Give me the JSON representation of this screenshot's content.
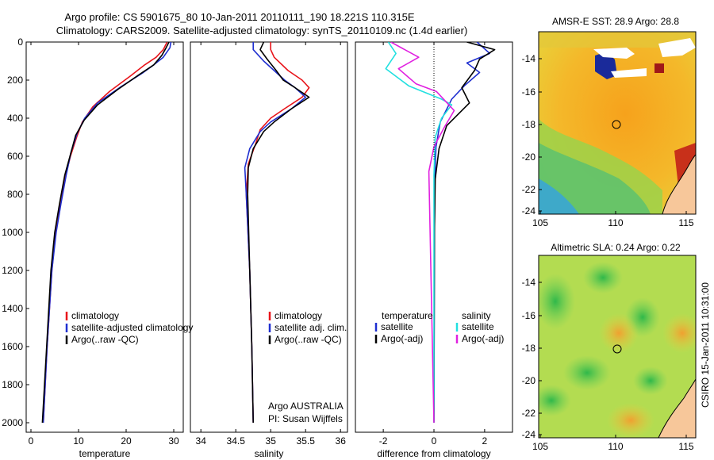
{
  "title_line1": "Argo profile: CS 5901675_80 10-Jan-2011 20110111_190 18.221S 110.315E",
  "title_line2": "Climatology: CARS2009. Satellite-adjusted climatology: synTS_20110109.nc (1.4d earlier)",
  "side_credit": "CSIRO 15-Jan-2011 10:31:00",
  "colors": {
    "red": "#e8141a",
    "blue": "#1f2fd0",
    "black": "#000000",
    "cyan": "#22e0e0",
    "magenta": "#e020e0"
  },
  "chart_data": [
    {
      "type": "line",
      "name": "temperature-panel",
      "xlabel": "temperature",
      "ylabel": "",
      "xlim": [
        -1,
        32
      ],
      "ylim": [
        2050,
        0
      ],
      "xticks": [
        0,
        10,
        20,
        30
      ],
      "yticks": [
        0,
        200,
        400,
        600,
        800,
        1000,
        1200,
        1400,
        1600,
        1800,
        2000
      ],
      "legend": [
        "climatology",
        "satellite-adjusted climatology",
        "Argo(..raw -QC)"
      ],
      "legend_colors": [
        "red",
        "blue",
        "black"
      ],
      "series": [
        {
          "name": "climatology",
          "color": "red",
          "x": [
            28.6,
            27.8,
            26.3,
            23.9,
            20.8,
            16.5,
            13.0,
            10.8,
            9.6,
            8.3,
            7.3,
            6.2,
            5.2,
            4.4,
            3.4,
            2.6
          ],
          "y": [
            0,
            40,
            80,
            120,
            180,
            260,
            340,
            420,
            500,
            600,
            700,
            850,
            1000,
            1200,
            1600,
            2000
          ]
        },
        {
          "name": "satellite-adjusted climatology",
          "color": "blue",
          "x": [
            29.4,
            29.2,
            27.8,
            25.8,
            23.6,
            18.6,
            14.0,
            11.3,
            9.7,
            8.4,
            7.4,
            6.3,
            5.3,
            4.4,
            3.4,
            2.6
          ],
          "y": [
            0,
            30,
            80,
            120,
            160,
            240,
            320,
            400,
            480,
            580,
            700,
            850,
            1000,
            1200,
            1600,
            2000
          ]
        },
        {
          "name": "Argo(..raw -QC)",
          "color": "black",
          "x": [
            29.0,
            28.4,
            27.5,
            25.8,
            22.8,
            18.2,
            14.0,
            11.2,
            9.4,
            8.2,
            7.1,
            6.0,
            5.0,
            4.2,
            3.3,
            2.4
          ],
          "y": [
            0,
            30,
            70,
            120,
            170,
            250,
            330,
            410,
            490,
            600,
            700,
            850,
            1000,
            1200,
            1600,
            2000
          ]
        }
      ],
      "annotations": []
    },
    {
      "type": "line",
      "name": "salinity-panel",
      "xlabel": "salinity",
      "ylabel": "",
      "xlim": [
        33.85,
        36.1
      ],
      "ylim": [
        2050,
        0
      ],
      "xticks": [
        34,
        34.5,
        35,
        35.5,
        36
      ],
      "yticks": [],
      "legend": [
        "climatology",
        "satellite adj. clim.",
        "Argo(..raw -QC)"
      ],
      "legend_colors": [
        "red",
        "blue",
        "black"
      ],
      "series": [
        {
          "name": "climatology",
          "color": "red",
          "x": [
            35.0,
            35.0,
            35.05,
            35.25,
            35.45,
            35.55,
            35.45,
            35.2,
            35.0,
            34.85,
            34.78,
            34.68,
            34.65,
            34.7,
            34.73,
            34.75
          ],
          "y": [
            0,
            40,
            80,
            150,
            200,
            240,
            290,
            350,
            400,
            460,
            540,
            640,
            800,
            1200,
            1600,
            2000
          ]
        },
        {
          "name": "satellite adj. clim.",
          "color": "blue",
          "x": [
            34.75,
            34.75,
            34.9,
            35.05,
            35.2,
            35.35,
            35.5,
            35.3,
            35.0,
            34.85,
            34.7,
            34.63,
            34.65,
            34.7,
            34.73,
            34.75
          ],
          "y": [
            0,
            40,
            100,
            150,
            200,
            240,
            290,
            350,
            420,
            470,
            560,
            660,
            800,
            1200,
            1600,
            2000
          ]
        },
        {
          "name": "Argo(..raw -QC)",
          "color": "black",
          "x": [
            34.9,
            34.85,
            34.95,
            35.08,
            35.18,
            35.35,
            35.55,
            35.3,
            35.05,
            34.9,
            34.75,
            34.68,
            34.67,
            34.7,
            34.73,
            34.75
          ],
          "y": [
            0,
            40,
            90,
            150,
            200,
            240,
            290,
            350,
            420,
            470,
            560,
            660,
            800,
            1200,
            1600,
            2000
          ]
        }
      ],
      "annotations": [
        "Argo AUSTRALIA",
        "PI: Susan Wijffels"
      ]
    },
    {
      "type": "line",
      "name": "difference-panel",
      "xlabel": "difference from climatology",
      "ylabel": "",
      "xlim": [
        -3.1,
        3.1
      ],
      "ylim": [
        2050,
        0
      ],
      "xticks": [
        -2,
        0,
        2
      ],
      "yticks": [],
      "legend_headings": [
        "temperature",
        "salinity"
      ],
      "legend": [
        "satellite",
        "Argo(-adj)",
        "satellite",
        "Argo(-adj)"
      ],
      "legend_colors": [
        "blue",
        "black",
        "cyan",
        "magenta"
      ],
      "series": [
        {
          "name": "temperature satellite",
          "color": "blue",
          "x": [
            1.7,
            2.2,
            1.3,
            1.8,
            1.2,
            0.7,
            0.25,
            0.08,
            0.04,
            0.02,
            0.0
          ],
          "y": [
            0,
            60,
            110,
            160,
            230,
            300,
            420,
            550,
            700,
            1000,
            2000
          ]
        },
        {
          "name": "temperature Argo(-adj)",
          "color": "black",
          "x": [
            1.3,
            2.4,
            1.8,
            1.6,
            1.1,
            1.4,
            0.5,
            0.2,
            0.05,
            0.02,
            0.0
          ],
          "y": [
            0,
            40,
            90,
            150,
            240,
            320,
            440,
            560,
            720,
            1000,
            2000
          ]
        },
        {
          "name": "salinity satellite",
          "color": "cyan",
          "x": [
            -1.8,
            -1.5,
            -1.9,
            -1.0,
            0.3,
            0.7,
            0.3,
            0.05,
            0.0,
            0.0
          ],
          "y": [
            0,
            60,
            140,
            230,
            300,
            330,
            400,
            500,
            700,
            2000
          ]
        },
        {
          "name": "salinity Argo(-adj)",
          "color": "magenta",
          "x": [
            -1.7,
            -0.6,
            -1.4,
            -0.7,
            0.1,
            0.8,
            0.4,
            0.0,
            -0.2,
            0.0
          ],
          "y": [
            0,
            80,
            140,
            220,
            260,
            360,
            450,
            550,
            680,
            2000
          ]
        }
      ],
      "annotations": []
    }
  ],
  "maps": [
    {
      "title": "AMSR-E SST: 28.9 Argo: 28.8",
      "xticks": [
        "105",
        "110",
        "115"
      ],
      "yticks": [
        "-14",
        "-16",
        "-18",
        "-20",
        "-22",
        "-24"
      ],
      "marker": "float position"
    },
    {
      "title": "Altimetric SLA: 0.24 Argo: 0.22",
      "xticks": [
        "105",
        "110",
        "115"
      ],
      "yticks": [
        "-14",
        "-16",
        "-18",
        "-20",
        "-22",
        "-24"
      ],
      "marker": "float position"
    }
  ]
}
